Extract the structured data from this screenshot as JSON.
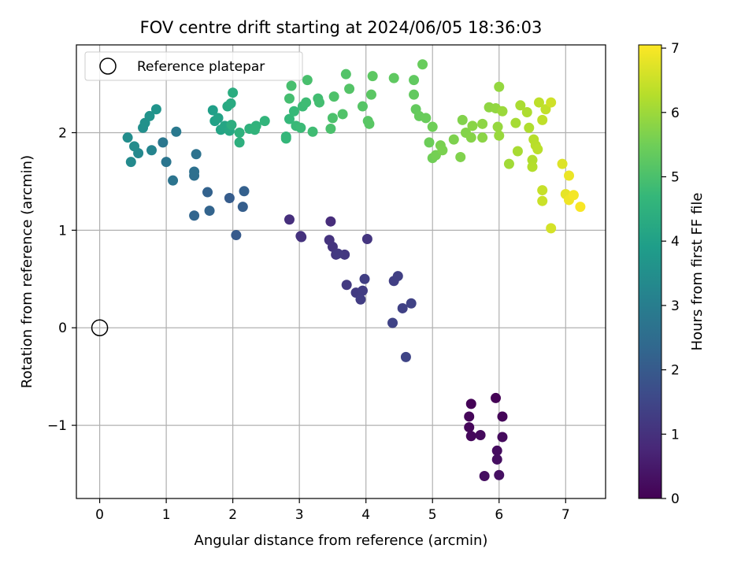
{
  "chart_data": {
    "type": "scatter",
    "title": "FOV centre drift starting at 2024/06/05 18:36:03",
    "xlabel": "Angular distance from reference (arcmin)",
    "ylabel": "Rotation from reference (arcmin)",
    "xlim": [
      -0.35,
      7.6
    ],
    "ylim": [
      -1.75,
      2.9
    ],
    "xticks": [
      0,
      1,
      2,
      3,
      4,
      5,
      6,
      7
    ],
    "yticks": [
      -1,
      0,
      1,
      2
    ],
    "grid": true,
    "legend": {
      "placement": "top-left",
      "entries": [
        "Reference platepar"
      ]
    },
    "reference_point": {
      "x": 0,
      "y": 0
    },
    "colorbar": {
      "label": "Hours from first FF file",
      "range": [
        0,
        7.05
      ],
      "ticks": [
        0,
        1,
        2,
        3,
        4,
        5,
        6,
        7
      ],
      "colormap": "viridis"
    },
    "colors": {
      "viridis": [
        "#440154",
        "#482878",
        "#3e4989",
        "#31688e",
        "#26828e",
        "#1f9e89",
        "#35b779",
        "#6ece58",
        "#b5de2b",
        "#fde725"
      ]
    },
    "series": [
      {
        "points": [
          [
            5.95,
            -0.72,
            0.02
          ],
          [
            5.58,
            -0.78,
            0.05
          ],
          [
            6.05,
            -0.91,
            0.08
          ],
          [
            5.55,
            -0.91,
            0.1
          ],
          [
            5.55,
            -1.02,
            0.13
          ],
          [
            5.58,
            -1.11,
            0.15
          ],
          [
            5.72,
            -1.1,
            0.18
          ],
          [
            6.05,
            -1.12,
            0.2
          ],
          [
            5.97,
            -1.26,
            0.23
          ],
          [
            5.97,
            -1.35,
            0.26
          ],
          [
            5.78,
            -1.52,
            0.28
          ],
          [
            6.0,
            -1.51,
            0.3
          ],
          [
            3.47,
            1.09,
            0.9
          ],
          [
            2.85,
            1.11,
            0.95
          ],
          [
            3.02,
            0.94,
            1.0
          ],
          [
            3.03,
            0.93,
            1.02
          ],
          [
            3.45,
            0.9,
            1.05
          ],
          [
            3.5,
            0.83,
            1.08
          ],
          [
            4.02,
            0.91,
            1.1
          ],
          [
            3.55,
            0.75,
            1.13
          ],
          [
            3.68,
            0.75,
            1.15
          ],
          [
            3.58,
            0.76,
            1.18
          ],
          [
            3.71,
            0.44,
            1.2
          ],
          [
            3.85,
            0.36,
            1.22
          ],
          [
            3.95,
            0.38,
            1.25
          ],
          [
            3.92,
            0.29,
            1.28
          ],
          [
            3.98,
            0.5,
            1.3
          ],
          [
            4.42,
            0.48,
            1.32
          ],
          [
            4.48,
            0.53,
            1.35
          ],
          [
            4.55,
            0.2,
            1.38
          ],
          [
            4.68,
            0.25,
            1.4
          ],
          [
            4.4,
            0.05,
            1.43
          ],
          [
            4.6,
            -0.3,
            1.45
          ],
          [
            2.05,
            0.95,
            2.0
          ],
          [
            1.95,
            1.33,
            2.05
          ],
          [
            2.15,
            1.24,
            2.1
          ],
          [
            2.17,
            1.4,
            2.15
          ],
          [
            1.62,
            1.39,
            2.2
          ],
          [
            1.65,
            1.2,
            2.25
          ],
          [
            1.42,
            1.15,
            2.3
          ],
          [
            1.42,
            1.56,
            2.55
          ],
          [
            1.42,
            1.6,
            2.6
          ],
          [
            1.45,
            1.78,
            2.65
          ],
          [
            1.1,
            1.51,
            2.7
          ],
          [
            1.0,
            1.7,
            2.75
          ],
          [
            0.95,
            1.9,
            2.8
          ],
          [
            1.15,
            2.01,
            2.85
          ],
          [
            0.78,
            1.82,
            3.2
          ],
          [
            0.58,
            1.79,
            3.3
          ],
          [
            0.47,
            1.7,
            3.35
          ],
          [
            0.52,
            1.86,
            3.4
          ],
          [
            0.42,
            1.95,
            3.45
          ],
          [
            0.65,
            2.05,
            3.5
          ],
          [
            0.68,
            2.1,
            3.55
          ],
          [
            0.75,
            2.17,
            3.6
          ],
          [
            0.85,
            2.24,
            3.65
          ],
          [
            1.7,
            2.23,
            3.95
          ],
          [
            1.73,
            2.12,
            4.0
          ],
          [
            1.78,
            2.15,
            4.05
          ],
          [
            1.82,
            2.03,
            4.1
          ],
          [
            1.88,
            2.07,
            4.15
          ],
          [
            1.95,
            2.02,
            4.2
          ],
          [
            1.92,
            2.27,
            4.25
          ],
          [
            1.97,
            2.3,
            4.3
          ],
          [
            2.0,
            2.41,
            4.35
          ],
          [
            1.98,
            2.08,
            4.4
          ],
          [
            2.1,
            1.9,
            4.45
          ],
          [
            2.1,
            2.0,
            4.5
          ],
          [
            2.25,
            2.04,
            4.52
          ],
          [
            2.35,
            2.07,
            4.55
          ],
          [
            2.33,
            2.03,
            4.58
          ],
          [
            2.48,
            2.12,
            4.6
          ],
          [
            2.8,
            1.96,
            4.65
          ],
          [
            2.8,
            1.94,
            4.68
          ],
          [
            2.85,
            2.14,
            4.7
          ],
          [
            2.92,
            2.22,
            4.72
          ],
          [
            2.95,
            2.07,
            4.75
          ],
          [
            3.02,
            2.05,
            4.78
          ],
          [
            3.05,
            2.27,
            4.8
          ],
          [
            3.1,
            2.31,
            4.82
          ],
          [
            3.2,
            2.01,
            4.85
          ],
          [
            3.28,
            2.35,
            4.88
          ],
          [
            3.3,
            2.31,
            4.9
          ],
          [
            2.85,
            2.35,
            4.92
          ],
          [
            2.88,
            2.48,
            4.95
          ],
          [
            3.12,
            2.54,
            4.98
          ],
          [
            3.47,
            2.04,
            5.0
          ],
          [
            3.5,
            2.15,
            5.02
          ],
          [
            3.52,
            2.37,
            5.05
          ],
          [
            3.65,
            2.19,
            5.08
          ],
          [
            3.7,
            2.6,
            5.1
          ],
          [
            3.75,
            2.45,
            5.12
          ],
          [
            3.95,
            2.27,
            5.15
          ],
          [
            4.03,
            2.12,
            5.18
          ],
          [
            4.05,
            2.09,
            5.2
          ],
          [
            4.08,
            2.39,
            5.22
          ],
          [
            4.1,
            2.58,
            5.25
          ],
          [
            4.42,
            2.56,
            5.28
          ],
          [
            4.72,
            2.54,
            5.3
          ],
          [
            4.72,
            2.39,
            5.32
          ],
          [
            4.75,
            2.24,
            5.35
          ],
          [
            4.8,
            2.17,
            5.38
          ],
          [
            4.85,
            2.7,
            5.4
          ],
          [
            4.9,
            2.15,
            5.42
          ],
          [
            4.95,
            1.9,
            5.45
          ],
          [
            5.0,
            2.06,
            5.48
          ],
          [
            5.0,
            1.74,
            5.5
          ],
          [
            5.05,
            1.77,
            5.55
          ],
          [
            5.12,
            1.87,
            5.6
          ],
          [
            5.15,
            1.82,
            5.62
          ],
          [
            5.32,
            1.93,
            5.65
          ],
          [
            5.42,
            1.75,
            5.68
          ],
          [
            5.45,
            2.13,
            5.7
          ],
          [
            5.5,
            2.0,
            5.72
          ],
          [
            5.58,
            1.95,
            5.75
          ],
          [
            5.6,
            2.07,
            5.78
          ],
          [
            5.75,
            1.95,
            5.8
          ],
          [
            5.75,
            2.09,
            5.82
          ],
          [
            5.85,
            2.26,
            5.85
          ],
          [
            5.95,
            2.25,
            5.88
          ],
          [
            6.0,
            2.47,
            5.9
          ],
          [
            5.98,
            2.06,
            5.92
          ],
          [
            6.0,
            1.97,
            5.95
          ],
          [
            6.05,
            2.22,
            5.98
          ],
          [
            6.15,
            1.68,
            6.05
          ],
          [
            6.25,
            2.1,
            6.1
          ],
          [
            6.28,
            1.81,
            6.12
          ],
          [
            6.32,
            2.28,
            6.15
          ],
          [
            6.42,
            2.21,
            6.18
          ],
          [
            6.45,
            2.05,
            6.2
          ],
          [
            6.5,
            1.72,
            6.22
          ],
          [
            6.5,
            1.65,
            6.25
          ],
          [
            6.52,
            1.93,
            6.28
          ],
          [
            6.55,
            1.87,
            6.3
          ],
          [
            6.58,
            1.83,
            6.32
          ],
          [
            6.6,
            2.31,
            6.35
          ],
          [
            6.65,
            2.13,
            6.38
          ],
          [
            6.7,
            2.24,
            6.4
          ],
          [
            6.65,
            1.41,
            6.45
          ],
          [
            6.65,
            1.3,
            6.5
          ],
          [
            6.78,
            2.31,
            6.55
          ],
          [
            6.78,
            1.02,
            6.6
          ],
          [
            6.95,
            1.68,
            6.7
          ],
          [
            7.0,
            1.37,
            6.8
          ],
          [
            7.05,
            1.56,
            6.85
          ],
          [
            7.05,
            1.31,
            6.9
          ],
          [
            7.12,
            1.36,
            6.95
          ],
          [
            7.22,
            1.24,
            7.0
          ]
        ]
      }
    ]
  }
}
